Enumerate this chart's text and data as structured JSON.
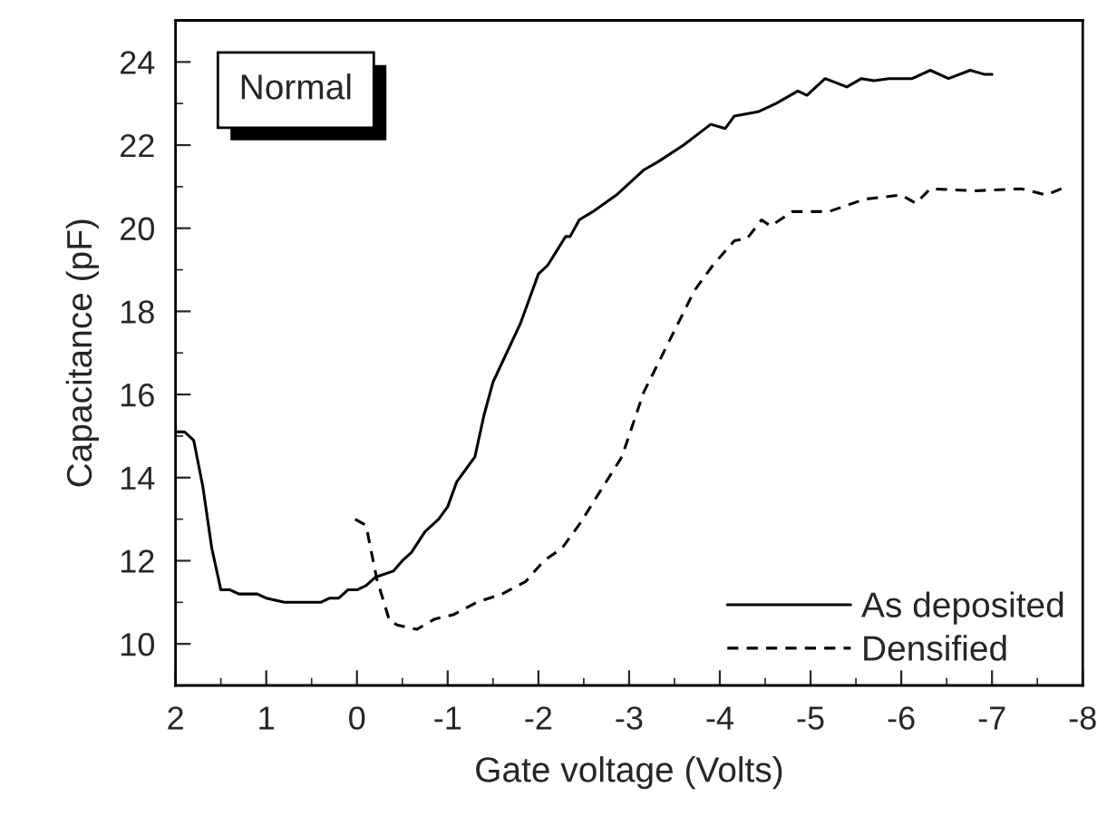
{
  "chart_data": {
    "type": "line",
    "xlabel": "Gate voltage (Volts)",
    "ylabel": "Capacitance (pF)",
    "annotations": [
      "Normal"
    ],
    "xlim": [
      2,
      -8
    ],
    "xticks": [
      2,
      1,
      0,
      -1,
      -2,
      -3,
      -4,
      -5,
      -6,
      -7,
      -8
    ],
    "ylim": [
      9,
      25
    ],
    "yticks": [
      10,
      12,
      14,
      16,
      18,
      20,
      22,
      24
    ],
    "grid": false,
    "legend": "bottom right",
    "series": [
      {
        "name": "As deposited",
        "color": "#000000",
        "line_style": "solid",
        "x": [
          2,
          1.9,
          1.8,
          1.7,
          1.6,
          1.5,
          1.4,
          1.3,
          1.1,
          1.0,
          0.9,
          0.8,
          0.5,
          0.4,
          0.3,
          0.2,
          0.1,
          0,
          -0.1,
          -0.2,
          -0.4,
          -0.5,
          -0.6,
          -0.75,
          -0.9,
          -1.0,
          -1.1,
          -1.3,
          -1.4,
          -1.5,
          -1.65,
          -1.8,
          -1.9,
          -2.0,
          -2.1,
          -2.3,
          -2.35,
          -2.45,
          -2.6,
          -2.86,
          -3.16,
          -3.32,
          -3.6,
          -3.9,
          -4.06,
          -4.16,
          -4.42,
          -4.62,
          -4.86,
          -4.96,
          -5.16,
          -5.4,
          -5.56,
          -5.7,
          -5.86,
          -6.12,
          -6.32,
          -6.52,
          -6.76,
          -6.92,
          -7.0
        ],
        "values": [
          15.1,
          15.1,
          14.9,
          13.8,
          12.3,
          11.3,
          11.3,
          11.2,
          11.2,
          11.1,
          11.05,
          11.0,
          11.0,
          11.0,
          11.1,
          11.1,
          11.3,
          11.3,
          11.4,
          11.6,
          11.75,
          12.0,
          12.2,
          12.7,
          13.0,
          13.3,
          13.9,
          14.5,
          15.5,
          16.3,
          17.0,
          17.7,
          18.3,
          18.9,
          19.1,
          19.8,
          19.8,
          20.2,
          20.4,
          20.8,
          21.4,
          21.6,
          22.0,
          22.5,
          22.4,
          22.7,
          22.8,
          23.0,
          23.3,
          23.2,
          23.6,
          23.4,
          23.6,
          23.55,
          23.6,
          23.6,
          23.8,
          23.6,
          23.8,
          23.7,
          23.7
        ]
      },
      {
        "name": "Densified",
        "color": "#000000",
        "line_style": "dashed",
        "x": [
          0.02,
          -0.1,
          -0.22,
          -0.36,
          -0.45,
          -0.66,
          -0.86,
          -1.06,
          -1.32,
          -1.6,
          -1.86,
          -2.06,
          -2.26,
          -2.46,
          -2.66,
          -2.92,
          -3.16,
          -3.4,
          -3.72,
          -3.92,
          -4.16,
          -4.3,
          -4.46,
          -4.56,
          -4.8,
          -5.2,
          -5.6,
          -6.0,
          -6.16,
          -6.32,
          -6.8,
          -7.32,
          -7.6,
          -7.82
        ],
        "values": [
          13.0,
          12.85,
          11.55,
          10.55,
          10.45,
          10.35,
          10.6,
          10.7,
          11.0,
          11.2,
          11.5,
          12.0,
          12.3,
          12.9,
          13.6,
          14.5,
          16.05,
          17.1,
          18.5,
          19.1,
          19.7,
          19.75,
          20.2,
          20.05,
          20.4,
          20.4,
          20.7,
          20.8,
          20.6,
          20.95,
          20.9,
          20.95,
          20.8,
          21.0
        ]
      }
    ]
  }
}
